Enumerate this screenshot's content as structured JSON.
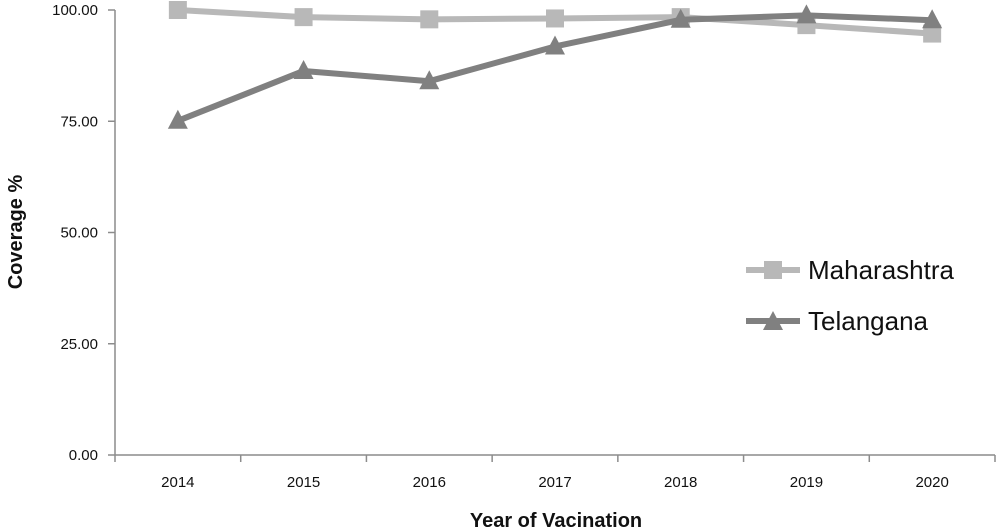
{
  "chart_data": {
    "type": "line",
    "title": "",
    "xlabel": "Year of Vacination",
    "ylabel": "Coverage  %",
    "categories": [
      "2014",
      "2015",
      "2016",
      "2017",
      "2018",
      "2019",
      "2020"
    ],
    "ylim": [
      0,
      100
    ],
    "yticks": [
      "0.00",
      "25.00",
      "50.00",
      "75.00",
      "100.00"
    ],
    "grid": false,
    "legend_position": "right",
    "series": [
      {
        "name": "Maharashtra",
        "values": [
          100.0,
          98.4,
          97.9,
          98.1,
          98.4,
          96.6,
          94.7
        ],
        "color": "#b8b8b8",
        "marker": "square"
      },
      {
        "name": "Telangana",
        "values": [
          75.1,
          86.3,
          84.0,
          91.8,
          97.8,
          98.8,
          97.7
        ],
        "color": "#808080",
        "marker": "triangle"
      }
    ]
  }
}
